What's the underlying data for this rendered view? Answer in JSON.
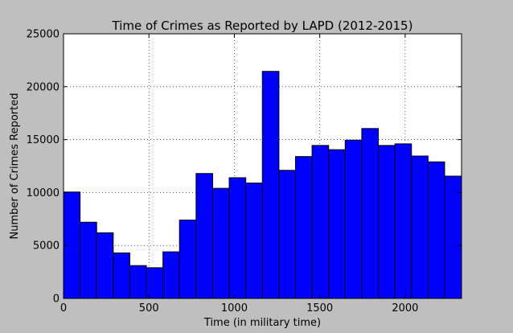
{
  "chart_data": {
    "type": "bar",
    "title": "Time of Crimes as Reported by LAPD (2012-2015)",
    "xlabel": "Time (in military time)",
    "ylabel": "Number of Crimes Reported",
    "xlim": [
      0,
      2330
    ],
    "ylim": [
      0,
      25000
    ],
    "grid": true,
    "bar_color": "#0000ff",
    "bar_edge_color": "#000000",
    "background_color": "#bfbfbf",
    "plot_background_color": "#ffffff",
    "xticks": [
      0,
      500,
      1000,
      1500,
      2000
    ],
    "xtick_labels": [
      "0",
      "500",
      "1000",
      "1500",
      "2000"
    ],
    "yticks": [
      0,
      5000,
      10000,
      15000,
      20000,
      25000
    ],
    "ytick_labels": [
      "0",
      "5000",
      "10000",
      "15000",
      "20000",
      "25000"
    ],
    "bins": [
      {
        "x0": 0,
        "x1": 97,
        "value": 10050
      },
      {
        "x0": 97,
        "x1": 194,
        "value": 7200
      },
      {
        "x0": 194,
        "x1": 291,
        "value": 6200
      },
      {
        "x0": 291,
        "x1": 388,
        "value": 4300
      },
      {
        "x0": 388,
        "x1": 485,
        "value": 3100
      },
      {
        "x0": 485,
        "x1": 582,
        "value": 2900
      },
      {
        "x0": 582,
        "x1": 679,
        "value": 4400
      },
      {
        "x0": 679,
        "x1": 776,
        "value": 7400
      },
      {
        "x0": 776,
        "x1": 873,
        "value": 11800
      },
      {
        "x0": 873,
        "x1": 970,
        "value": 10400
      },
      {
        "x0": 970,
        "x1": 1067,
        "value": 11400
      },
      {
        "x0": 1067,
        "x1": 1164,
        "value": 10900
      },
      {
        "x0": 1164,
        "x1": 1261,
        "value": 21450
      },
      {
        "x0": 1261,
        "x1": 1358,
        "value": 12100
      },
      {
        "x0": 1358,
        "x1": 1455,
        "value": 13400
      },
      {
        "x0": 1455,
        "x1": 1552,
        "value": 14450
      },
      {
        "x0": 1552,
        "x1": 1649,
        "value": 14050
      },
      {
        "x0": 1649,
        "x1": 1746,
        "value": 14950
      },
      {
        "x0": 1746,
        "x1": 1843,
        "value": 16050
      },
      {
        "x0": 1843,
        "x1": 1940,
        "value": 14450
      },
      {
        "x0": 1940,
        "x1": 2037,
        "value": 14600
      },
      {
        "x0": 2037,
        "x1": 2134,
        "value": 13450
      },
      {
        "x0": 2134,
        "x1": 2231,
        "value": 12900
      },
      {
        "x0": 2231,
        "x1": 2330,
        "value": 11550
      }
    ]
  }
}
